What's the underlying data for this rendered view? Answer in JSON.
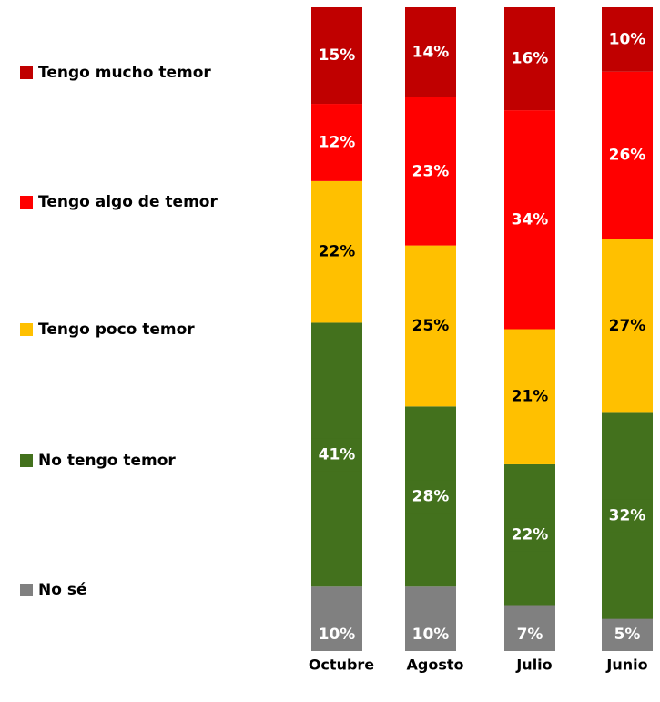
{
  "chart_data": {
    "type": "stacked_bar",
    "categories": [
      "Octubre",
      "Agosto",
      "Julio",
      "Junio"
    ],
    "series": [
      {
        "name": "No sé",
        "color": "#808080",
        "label_color": "#ffffff",
        "values": [
          10,
          10,
          7,
          5
        ],
        "value_labels": [
          "10%",
          "10%",
          "7%",
          "5%"
        ]
      },
      {
        "name": "No tengo temor",
        "color": "#43711d",
        "label_color": "#ffffff",
        "values": [
          41,
          28,
          22,
          32
        ],
        "value_labels": [
          "41%",
          "28%",
          "22%",
          "32%"
        ]
      },
      {
        "name": "Tengo poco temor",
        "color": "#ffc000",
        "label_color": "#000000",
        "values": [
          22,
          25,
          21,
          27
        ],
        "value_labels": [
          "22%",
          "25%",
          "21%",
          "27%"
        ]
      },
      {
        "name": "Tengo algo de temor",
        "color": "#ff0000",
        "label_color": "#ffffff",
        "values": [
          12,
          23,
          34,
          26
        ],
        "value_labels": [
          "12%",
          "23%",
          "34%",
          "26%"
        ]
      },
      {
        "name": "Tengo mucho temor",
        "color": "#c00000",
        "label_color": "#ffffff",
        "values": [
          15,
          14,
          16,
          10
        ],
        "value_labels": [
          "15%",
          "14%",
          "16%",
          "10%"
        ]
      }
    ],
    "legend": "left"
  }
}
